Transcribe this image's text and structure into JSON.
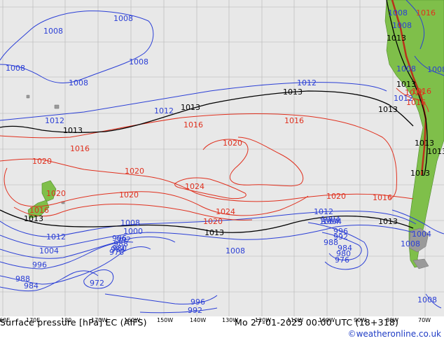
{
  "map": {
    "title_left": "Surface pressure [hPa] EC (AIFS)",
    "title_right": "Mo 27-01-2025 00:00 UTC (18+318)",
    "credit": "©weatheronline.co.uk",
    "lon_ticks": [
      "160E",
      "170E",
      "180",
      "170W",
      "160W",
      "150W",
      "140W",
      "130W",
      "120W",
      "110W",
      "100W",
      "90W",
      "80W",
      "70W"
    ],
    "colors": {
      "ocean": "#e8e8e8",
      "low_isobar": "#2b3fd6",
      "high_isobar": "#e0301e",
      "reference_isobar": "#000000",
      "land": "#7fbf4a"
    },
    "isobar_labels": {
      "blue": [
        "1008",
        "1008",
        "1008",
        "1008",
        "1008",
        "1012",
        "1012",
        "1012",
        "1008",
        "1004",
        "1000",
        "996",
        "992",
        "988",
        "984",
        "980",
        "976",
        "972",
        "996",
        "992",
        "1012",
        "1008",
        "1004",
        "1008",
        "996",
        "988",
        "984",
        "980",
        "976",
        "992",
        "1012",
        "1008",
        "1004",
        "996",
        "988",
        "984",
        "1004",
        "1008",
        "1008",
        "1008",
        "1012",
        "1004",
        "1008"
      ],
      "red": [
        "1016",
        "1016",
        "1016",
        "1020",
        "1020",
        "1020",
        "1020",
        "1024",
        "1024",
        "1020",
        "1020",
        "1016",
        "1016",
        "1020",
        "1016",
        "1016",
        "1016",
        "1016"
      ],
      "black": [
        "1013",
        "1013",
        "1013",
        "1013",
        "1013",
        "1013",
        "1013",
        "1013",
        "1013",
        "1013",
        "1013",
        "1013"
      ]
    }
  }
}
